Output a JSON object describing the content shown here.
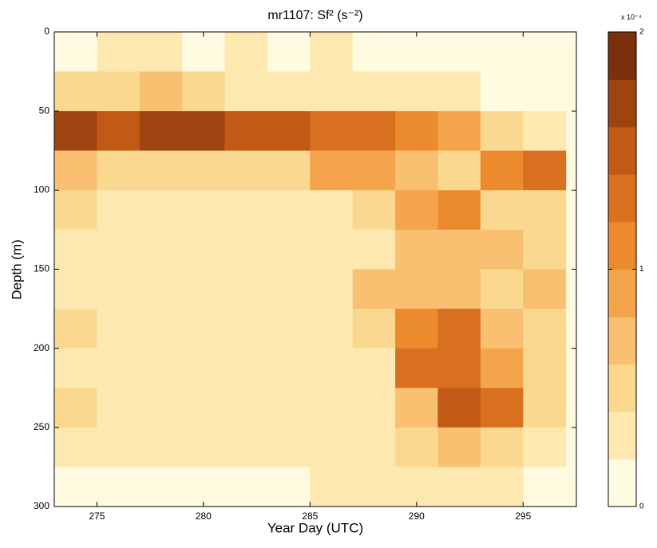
{
  "chart_data": {
    "type": "heatmap",
    "title": "mr1107: Sf² (s⁻²)",
    "x_label": "Year Day (UTC)",
    "y_label": "Depth (m)",
    "xlim": [
      273,
      297.5
    ],
    "xticks": [
      275,
      280,
      285,
      290,
      295
    ],
    "ylim": [
      0,
      300
    ],
    "yticks": [
      0,
      50,
      100,
      150,
      200,
      250,
      300
    ],
    "y_reversed": true,
    "x_bins": [
      273,
      275,
      277,
      279,
      281,
      283,
      285,
      287,
      289,
      291,
      293,
      295,
      297
    ],
    "y_bins": [
      0,
      25,
      50,
      75,
      100,
      125,
      150,
      175,
      200,
      225,
      250,
      275,
      300
    ],
    "values": [
      [
        0.1,
        0.2,
        0.2,
        0.1,
        0.2,
        0.1,
        0.2,
        0.1,
        0.1,
        0.1,
        0.1,
        0.1
      ],
      [
        0.5,
        0.4,
        0.6,
        0.4,
        0.3,
        0.3,
        0.3,
        0.2,
        0.2,
        0.2,
        0.1,
        0.1
      ],
      [
        1.6,
        1.5,
        1.7,
        1.6,
        1.5,
        1.4,
        1.3,
        1.2,
        1.1,
        0.9,
        0.5,
        0.3
      ],
      [
        0.7,
        0.5,
        0.4,
        0.4,
        0.4,
        0.5,
        0.9,
        0.8,
        0.7,
        0.5,
        1.0,
        1.3
      ],
      [
        0.4,
        0.3,
        0.3,
        0.3,
        0.3,
        0.3,
        0.3,
        0.5,
        0.9,
        1.0,
        0.5,
        0.5
      ],
      [
        0.3,
        0.3,
        0.3,
        0.2,
        0.3,
        0.3,
        0.3,
        0.3,
        0.6,
        0.7,
        0.6,
        0.5
      ],
      [
        0.3,
        0.3,
        0.2,
        0.2,
        0.3,
        0.3,
        0.3,
        0.6,
        0.7,
        0.6,
        0.5,
        0.7
      ],
      [
        0.4,
        0.3,
        0.3,
        0.3,
        0.3,
        0.3,
        0.3,
        0.5,
        1.1,
        1.2,
        0.6,
        0.4
      ],
      [
        0.3,
        0.3,
        0.3,
        0.3,
        0.3,
        0.3,
        0.3,
        0.3,
        1.3,
        1.3,
        0.8,
        0.4
      ],
      [
        0.4,
        0.3,
        0.3,
        0.2,
        0.3,
        0.3,
        0.3,
        0.3,
        0.7,
        1.4,
        1.2,
        0.4
      ],
      [
        0.2,
        0.2,
        0.2,
        0.2,
        0.2,
        0.2,
        0.3,
        0.3,
        0.4,
        0.6,
        0.5,
        0.3
      ],
      [
        0.1,
        0.1,
        0.1,
        0.1,
        0.1,
        0.1,
        0.2,
        0.2,
        0.2,
        0.2,
        0.2,
        0.1
      ]
    ],
    "colorbar_label": "x 10⁻⁴",
    "clim": [
      0,
      2
    ],
    "cticks": [
      0,
      1,
      2
    ],
    "colors": [
      "#fffbe0",
      "#fde9b0",
      "#fbd890",
      "#f8c070",
      "#f4a54c",
      "#ec8a2e",
      "#d9701f",
      "#c05a14",
      "#9e4410",
      "#7a300b"
    ]
  }
}
